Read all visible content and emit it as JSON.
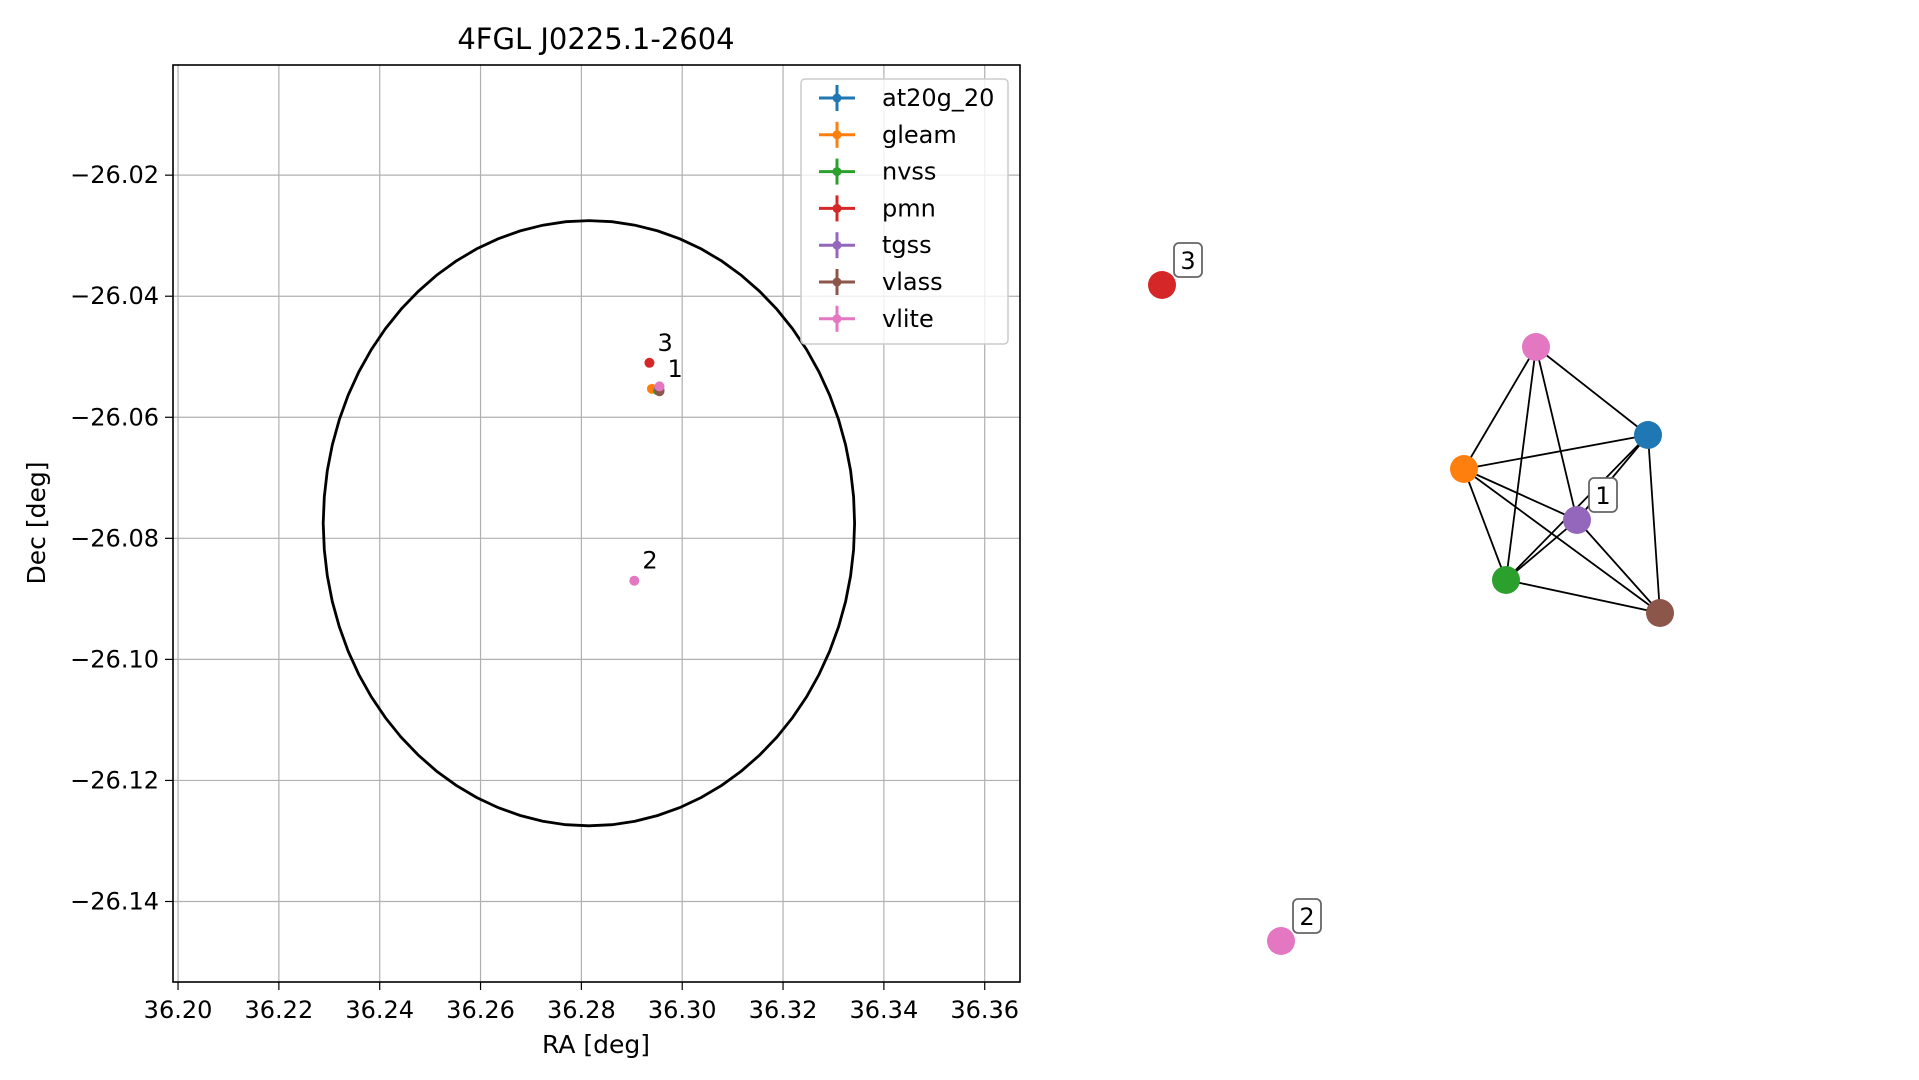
{
  "chart_data": [
    {
      "type": "scatter",
      "title": "4FGL J0225.1-2604",
      "xlabel": "RA [deg]",
      "ylabel": "Dec [deg]",
      "xlim": [
        36.199,
        36.367
      ],
      "ylim": [
        -26.1533,
        -26.0018
      ],
      "x_ticks": [
        36.2,
        36.22,
        36.24,
        36.26,
        36.28,
        36.3,
        36.32,
        36.34,
        36.36
      ],
      "x_tick_labels": [
        "36.20",
        "36.22",
        "36.24",
        "36.26",
        "36.28",
        "36.30",
        "36.32",
        "36.34",
        "36.36"
      ],
      "y_ticks": [
        -26.02,
        -26.04,
        -26.06,
        -26.08,
        -26.1,
        -26.12,
        -26.14
      ],
      "y_tick_labels": [
        "−26.02",
        "−26.04",
        "−26.06",
        "−26.08",
        "−26.10",
        "−26.12",
        "−26.14"
      ],
      "grid": true,
      "legend_position": "top-right",
      "ellipse": {
        "center": [
          36.2815,
          -26.0775
        ],
        "semi_axis_x": 0.0527,
        "semi_axis_y": 0.05,
        "color": "#000000"
      },
      "series": [
        {
          "name": "at20g_20",
          "color": "#1f77b4",
          "points": [
            [
              36.2955,
              -26.0555
            ]
          ]
        },
        {
          "name": "gleam",
          "color": "#ff7f0e",
          "points": [
            [
              36.294,
              -26.0553
            ]
          ]
        },
        {
          "name": "nvss",
          "color": "#2ca02c",
          "points": [
            [
              36.2952,
              -26.0556
            ]
          ]
        },
        {
          "name": "pmn",
          "color": "#d62728",
          "points": [
            [
              36.2935,
              -26.051
            ]
          ]
        },
        {
          "name": "tgss",
          "color": "#9467bd",
          "points": [
            [
              36.2954,
              -26.0552
            ]
          ]
        },
        {
          "name": "vlass",
          "color": "#8c564b",
          "points": [
            [
              36.2955,
              -26.0557
            ]
          ]
        },
        {
          "name": "vlite",
          "color": "#e377c2",
          "points": [
            [
              36.2955,
              -26.0549
            ],
            [
              36.2905,
              -26.087
            ]
          ]
        }
      ],
      "annotations": [
        {
          "text": "3",
          "x": 36.2935,
          "y": -26.051
        },
        {
          "text": "1",
          "x": 36.2955,
          "y": -26.0553
        },
        {
          "text": "2",
          "x": 36.2905,
          "y": -26.087
        }
      ]
    },
    {
      "type": "network",
      "nodes": [
        {
          "id": "pmn",
          "color": "#d62728",
          "label": "3"
        },
        {
          "id": "vlite_2",
          "color": "#e377c2",
          "label": "2"
        },
        {
          "id": "vlite_1",
          "color": "#e377c2"
        },
        {
          "id": "at20g_20",
          "color": "#1f77b4"
        },
        {
          "id": "gleam",
          "color": "#ff7f0e"
        },
        {
          "id": "tgss",
          "color": "#9467bd",
          "label": "1"
        },
        {
          "id": "nvss",
          "color": "#2ca02c"
        },
        {
          "id": "vlass",
          "color": "#8c564b"
        }
      ],
      "edges": [
        [
          "vlite_1",
          "at20g_20"
        ],
        [
          "vlite_1",
          "gleam"
        ],
        [
          "vlite_1",
          "tgss"
        ],
        [
          "vlite_1",
          "nvss"
        ],
        [
          "at20g_20",
          "gleam"
        ],
        [
          "at20g_20",
          "tgss"
        ],
        [
          "at20g_20",
          "nvss"
        ],
        [
          "at20g_20",
          "vlass"
        ],
        [
          "gleam",
          "tgss"
        ],
        [
          "gleam",
          "nvss"
        ],
        [
          "gleam",
          "vlass"
        ],
        [
          "tgss",
          "nvss"
        ],
        [
          "tgss",
          "vlass"
        ],
        [
          "nvss",
          "vlass"
        ]
      ]
    }
  ]
}
